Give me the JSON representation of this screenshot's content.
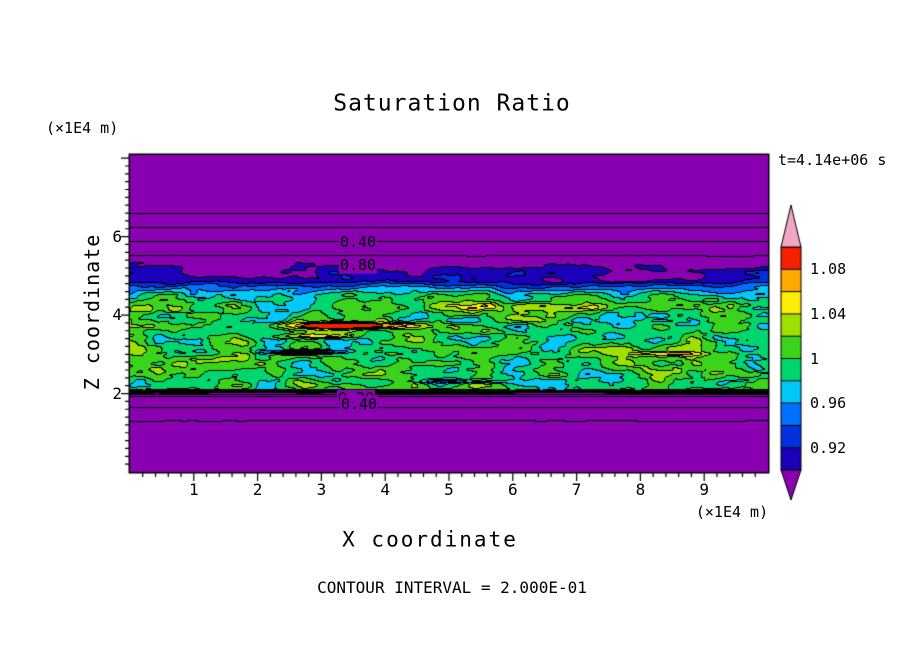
{
  "figure": {
    "background": "#ffffff"
  },
  "chart_data": {
    "type": "heatmap",
    "title": "Saturation Ratio",
    "xlabel": "X coordinate",
    "ylabel": "Z coordinate",
    "x_axis_unit": "(×1E4 m)",
    "z_axis_unit": "(×1E4 m)",
    "time_label": "t=4.14e+06 s",
    "footer": "CONTOUR INTERVAL = 2.000E-01",
    "x_range": [
      0,
      10
    ],
    "z_range": [
      0,
      8.08
    ],
    "x_ticks": [
      1,
      2,
      3,
      4,
      5,
      6,
      7,
      8,
      9
    ],
    "z_ticks": [
      2,
      4,
      6
    ],
    "minor_tick_step": 0.2,
    "line_contour_interval": 0.2,
    "contour_labels": [
      {
        "text": "0.40",
        "x": 228,
        "y": 87
      },
      {
        "text": "0.80",
        "x": 228,
        "y": 110
      },
      {
        "text": "0.20",
        "x": 226,
        "y": 243
      },
      {
        "text": "0.40",
        "x": 229,
        "y": 249
      }
    ],
    "colorbar": {
      "levels": [
        0.9,
        0.92,
        0.94,
        0.96,
        0.98,
        1.0,
        1.02,
        1.04,
        1.06,
        1.08,
        1.1
      ],
      "band_colors": [
        "#1a00b8",
        "#0030e0",
        "#0070ff",
        "#00c8f8",
        "#00d66e",
        "#3bd41c",
        "#a0e000",
        "#ffee00",
        "#ffa800",
        "#f52000"
      ],
      "under_color": "#8800b0",
      "over_color": "#f2a6c2",
      "labels": [
        {
          "value": 1.08,
          "text": "1.08"
        },
        {
          "value": 1.04,
          "text": "1.04"
        },
        {
          "value": 1.0,
          "text": "1"
        },
        {
          "value": 0.96,
          "text": "0.96"
        },
        {
          "value": 0.92,
          "text": "0.92"
        }
      ]
    },
    "field_model": {
      "seed": 7,
      "noise_scale_x": 0.55,
      "noise_scale_z": 0.28,
      "clamp": [
        0.883,
        1.098
      ],
      "profile": [
        [
          0,
          0.12
        ],
        [
          1.2,
          0.15
        ],
        [
          1.9,
          0.55
        ],
        [
          1.98,
          0.88
        ],
        [
          2.1,
          1.0
        ],
        [
          4.25,
          1.0
        ],
        [
          4.5,
          0.985
        ],
        [
          4.7,
          0.95
        ],
        [
          4.85,
          0.915
        ],
        [
          5.1,
          0.91
        ],
        [
          5.35,
          0.885
        ],
        [
          6.75,
          0.1
        ],
        [
          8.1,
          0.09
        ]
      ],
      "noise_amp": [
        [
          0,
          0.002
        ],
        [
          1.8,
          0.003
        ],
        [
          1.95,
          0.02
        ],
        [
          2.1,
          0.05
        ],
        [
          4.25,
          0.055
        ],
        [
          4.55,
          0.035
        ],
        [
          4.75,
          0.03
        ],
        [
          5.3,
          0.025
        ],
        [
          5.55,
          0.006
        ],
        [
          8.1,
          0.004
        ]
      ],
      "streaks": [
        {
          "x": 3.5,
          "z": 3.72,
          "sx": 0.9,
          "sz": 0.08,
          "amp": 0.13
        },
        {
          "x": 3.0,
          "z": 3.45,
          "sx": 0.6,
          "sz": 0.06,
          "amp": 0.06
        },
        {
          "x": 6.4,
          "z": 4.18,
          "sx": 1.5,
          "sz": 0.12,
          "amp": 0.06
        },
        {
          "x": 8.5,
          "z": 3.0,
          "sx": 0.7,
          "sz": 0.06,
          "amp": 0.05
        },
        {
          "x": 2.7,
          "z": 3.05,
          "sx": 0.55,
          "sz": 0.05,
          "amp": -0.13
        },
        {
          "x": 5.2,
          "z": 2.3,
          "sx": 0.9,
          "sz": 0.05,
          "amp": -0.05
        },
        {
          "x": 7.8,
          "z": 4.95,
          "sx": 0.8,
          "sz": 0.12,
          "amp": -0.03
        },
        {
          "x": 1.4,
          "z": 5.05,
          "sx": 0.9,
          "sz": 0.12,
          "amp": -0.025
        }
      ]
    }
  }
}
